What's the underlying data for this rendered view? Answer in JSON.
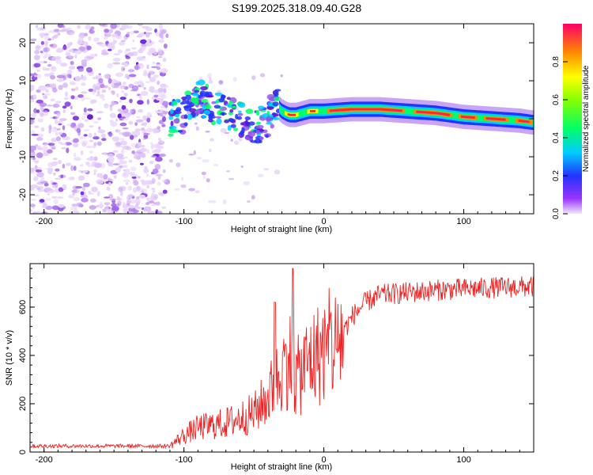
{
  "title": "S199.2025.318.09.40.G28",
  "chart_data": [
    {
      "type": "heatmap",
      "name": "spectrogram",
      "xlabel": "Height of straight line (km)",
      "ylabel": "Frequency (Hz)",
      "xlim": [
        -210,
        150
      ],
      "ylim": [
        -25,
        25
      ],
      "xticks": [
        -200,
        -100,
        0,
        100
      ],
      "yticks": [
        -20,
        -10,
        0,
        10,
        20
      ],
      "colorbar": {
        "label": "Normalized spectral amplitude",
        "range": [
          0,
          1
        ],
        "ticks": [
          "0.0",
          "0.2",
          "0.4",
          "0.6",
          "0.8"
        ],
        "tick_values": [
          0.0,
          0.2,
          0.4,
          0.6,
          0.8
        ]
      },
      "noise_region": {
        "x": [
          -210,
          -112
        ],
        "y": [
          -25,
          25
        ]
      },
      "ridge": {
        "x": [
          -110,
          -100,
          -90,
          -80,
          -70,
          -60,
          -50,
          -40,
          -35,
          -30,
          -25,
          -20,
          -10,
          0,
          20,
          40,
          60,
          80,
          100,
          120,
          140,
          150
        ],
        "freq": [
          0,
          1,
          6,
          3,
          2,
          0,
          -3,
          0,
          4,
          2,
          1,
          1,
          2,
          2,
          2.5,
          2.5,
          2,
          1.5,
          0.5,
          0,
          -0.5,
          -1
        ]
      }
    },
    {
      "type": "line",
      "name": "snr",
      "xlabel": "Height of straight line (km)",
      "ylabel": "SNR (10 * v/v)",
      "xlim": [
        -210,
        150
      ],
      "ylim": [
        0,
        780
      ],
      "xticks": [
        -200,
        -100,
        0,
        100
      ],
      "yticks": [
        0,
        200,
        400,
        600
      ],
      "color": "#ee2222",
      "envelope": {
        "x": [
          -210,
          -150,
          -110,
          -100,
          -90,
          -70,
          -50,
          -40,
          -30,
          -25,
          -20,
          -10,
          0,
          10,
          20,
          30,
          40,
          60,
          80,
          100,
          120,
          150
        ],
        "y": [
          25,
          25,
          25,
          70,
          100,
          120,
          160,
          230,
          330,
          400,
          300,
          380,
          420,
          450,
          560,
          620,
          650,
          660,
          670,
          675,
          680,
          685
        ]
      },
      "peaks": [
        {
          "x": -22,
          "y": 760
        },
        {
          "x": -35,
          "y": 620
        }
      ]
    }
  ]
}
